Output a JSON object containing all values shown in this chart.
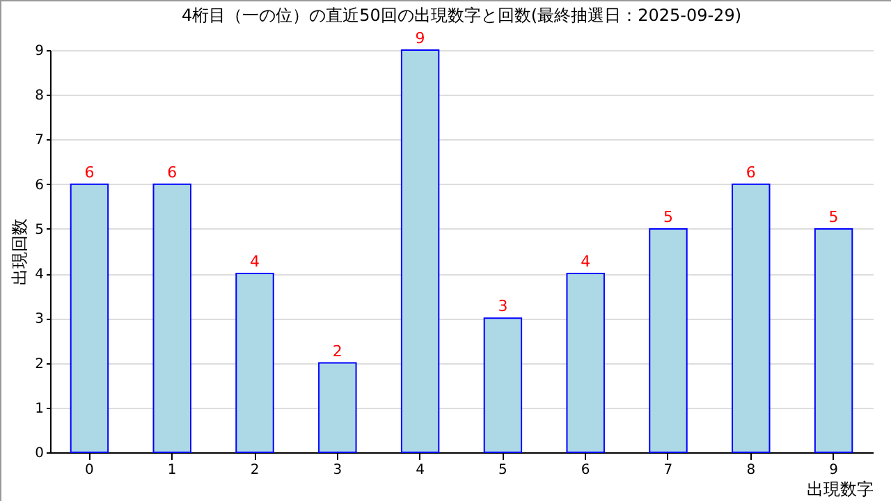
{
  "chart_data": {
    "type": "bar",
    "title": "4桁目（一の位）の直近50回の出現数字と回数(最終抽選日：2025-09-29)",
    "xlabel": "出現数字",
    "ylabel": "出現回数",
    "categories": [
      "0",
      "1",
      "2",
      "3",
      "4",
      "5",
      "6",
      "7",
      "8",
      "9"
    ],
    "values": [
      6,
      6,
      4,
      2,
      9,
      3,
      4,
      5,
      6,
      5
    ],
    "color": "#add8e6",
    "ylim": [
      0,
      9
    ],
    "yticks": [
      0,
      1,
      2,
      3,
      4,
      5,
      6,
      7,
      8,
      9
    ],
    "grid": "y",
    "data_labels": true
  }
}
